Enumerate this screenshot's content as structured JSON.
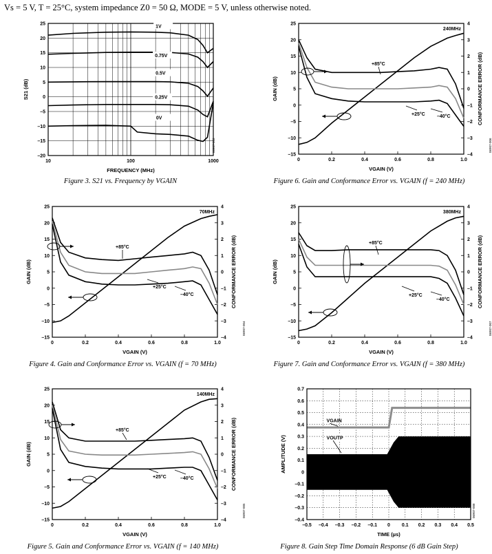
{
  "header": {
    "conditions": "Vs = 5 V, T = 25°C, system impedance Z0 = 50 Ω, MODE = 5 V, unless otherwise noted."
  },
  "chart_data": [
    {
      "id": "fig3",
      "type": "line",
      "caption": "Figure 3. S21 vs. Frequency by VGAIN",
      "code": "06907-003",
      "xlabel": "FREQUENCY (MHz)",
      "ylabel": "S21 (dB)",
      "xscale": "log",
      "xlim": [
        10,
        1000
      ],
      "ylim": [
        -20,
        25
      ],
      "xticks": [
        10,
        100,
        1000
      ],
      "yticks": [
        -20,
        -15,
        -10,
        -5,
        0,
        5,
        10,
        15,
        20,
        25
      ],
      "grid": true,
      "series": [
        {
          "name": "1V",
          "x": [
            10,
            20,
            50,
            100,
            200,
            300,
            500,
            650,
            750,
            850,
            1000
          ],
          "y": [
            21,
            21.6,
            22,
            22.1,
            22,
            21.8,
            21,
            19.5,
            17.5,
            15,
            16.5
          ]
        },
        {
          "name": "0.75V",
          "x": [
            10,
            20,
            50,
            100,
            200,
            300,
            500,
            650,
            750,
            850,
            1000
          ],
          "y": [
            14.5,
            14.8,
            15.1,
            15.2,
            15.2,
            15.1,
            14.6,
            13.5,
            12,
            10,
            12
          ]
        },
        {
          "name": "0.5V",
          "x": [
            10,
            20,
            50,
            100,
            200,
            300,
            500,
            650,
            750,
            850,
            1000
          ],
          "y": [
            5,
            5.1,
            5.2,
            5.2,
            5.2,
            5.1,
            4.6,
            3.5,
            2,
            0.2,
            3
          ]
        },
        {
          "name": "0.25V",
          "x": [
            10,
            20,
            50,
            100,
            200,
            300,
            500,
            650,
            750,
            850,
            1000
          ],
          "y": [
            -3,
            -2.8,
            -2.6,
            -2.6,
            -2.6,
            -2.7,
            -3.2,
            -4.5,
            -6,
            -6.8,
            -1.5
          ]
        },
        {
          "name": "0V",
          "x": [
            10,
            20,
            50,
            100,
            120,
            200,
            300,
            500,
            650,
            750,
            850,
            1000
          ],
          "y": [
            -10,
            -9.8,
            -9.7,
            -10,
            -12,
            -12.6,
            -12.8,
            -13.4,
            -14.8,
            -15.2,
            -13.8,
            -2
          ]
        }
      ]
    },
    {
      "id": "fig6",
      "type": "line",
      "caption": "Figure 6. Gain and Conformance Error vs. VGAIN (f = 240 MHz)",
      "code": "06907-006",
      "freq_label": "240MHz",
      "xlabel": "VGAIN (V)",
      "ylabel": "GAIN (dB)",
      "y2label": "CONFORMANCE ERROR (dB)",
      "xlim": [
        0,
        1
      ],
      "ylim": [
        -15,
        25
      ],
      "y2lim": [
        -4,
        4
      ],
      "xticks": [
        0,
        0.2,
        0.4,
        0.6,
        0.8,
        1.0
      ],
      "xtick_labels": [
        "0",
        "0.2",
        "0.4",
        "0.6",
        "0.8",
        "1.0"
      ],
      "yticks": [
        -15,
        -10,
        -5,
        0,
        5,
        10,
        15,
        20,
        25
      ],
      "y2ticks": [
        -4,
        -3,
        -2,
        -1,
        0,
        1,
        2,
        3,
        4
      ],
      "annotations": [
        "+85°C",
        "+25°C",
        "–40°C"
      ],
      "gain": {
        "x": [
          0,
          0.05,
          0.1,
          0.2,
          0.3,
          0.4,
          0.5,
          0.6,
          0.7,
          0.8,
          0.9,
          0.95,
          1.0
        ],
        "y": [
          -12,
          -11.4,
          -10,
          -5.5,
          -1.5,
          2.5,
          6.5,
          10.5,
          14.5,
          18,
          20.5,
          21.3,
          22
        ]
      },
      "error_series": [
        {
          "name": "+85°C",
          "x": [
            0,
            0.05,
            0.1,
            0.2,
            0.3,
            0.4,
            0.5,
            0.6,
            0.7,
            0.8,
            0.85,
            0.9,
            0.95,
            1.0
          ],
          "y": [
            3,
            1.9,
            1.2,
            1.0,
            1.0,
            1.0,
            1.0,
            1.05,
            1.1,
            1.2,
            1.3,
            1.2,
            0.3,
            -1.2
          ]
        },
        {
          "name": "+25°C",
          "x": [
            0,
            0.05,
            0.1,
            0.2,
            0.3,
            0.4,
            0.5,
            0.6,
            0.7,
            0.8,
            0.85,
            0.9,
            0.95,
            1.0
          ],
          "y": [
            2.8,
            1.3,
            0.4,
            0.1,
            0,
            0,
            0,
            0,
            0.05,
            0.1,
            0.2,
            0.1,
            -0.6,
            -1.8
          ]
        },
        {
          "name": "–40°C",
          "x": [
            0,
            0.05,
            0.1,
            0.2,
            0.3,
            0.4,
            0.5,
            0.6,
            0.7,
            0.8,
            0.85,
            0.9,
            0.95,
            1.0
          ],
          "y": [
            2.6,
            0.7,
            -0.3,
            -0.6,
            -0.75,
            -0.8,
            -0.8,
            -0.8,
            -0.8,
            -0.75,
            -0.7,
            -0.9,
            -1.6,
            -2.3
          ]
        }
      ]
    },
    {
      "id": "fig4",
      "type": "line",
      "caption": "Figure 4. Gain and Conformance Error vs. VGAIN (f = 70 MHz)",
      "code": "06907-004",
      "freq_label": "70MHz",
      "xlabel": "VGAIN (V)",
      "ylabel": "GAIN (dB)",
      "y2label": "CONFORMANCE ERROR (dB)",
      "xlim": [
        0,
        1
      ],
      "ylim": [
        -15,
        25
      ],
      "y2lim": [
        -4,
        4
      ],
      "xticks": [
        0,
        0.2,
        0.4,
        0.6,
        0.8,
        1.0
      ],
      "xtick_labels": [
        "0",
        "0.2",
        "0.4",
        "0.6",
        "0.8",
        "1.0"
      ],
      "yticks": [
        -15,
        -10,
        -5,
        0,
        5,
        10,
        15,
        20,
        25
      ],
      "y2ticks": [
        -4,
        -3,
        -2,
        -1,
        0,
        1,
        2,
        3,
        4
      ],
      "annotations": [
        "+85°C",
        "+25°C",
        "–40°C"
      ],
      "gain": {
        "x": [
          0,
          0.05,
          0.1,
          0.2,
          0.3,
          0.4,
          0.5,
          0.6,
          0.7,
          0.8,
          0.9,
          0.95,
          1.0
        ],
        "y": [
          -10.5,
          -10,
          -8.5,
          -4.5,
          -0.5,
          3.5,
          7.5,
          11.5,
          15.5,
          19,
          21.3,
          22,
          22.5
        ]
      },
      "error_series": [
        {
          "name": "+85°C",
          "x": [
            0,
            0.05,
            0.1,
            0.2,
            0.3,
            0.4,
            0.5,
            0.6,
            0.7,
            0.8,
            0.85,
            0.9,
            0.95,
            1.0
          ],
          "y": [
            3.3,
            1.8,
            1.2,
            0.85,
            0.75,
            0.7,
            0.8,
            0.9,
            1.0,
            1.1,
            1.2,
            1.0,
            0.1,
            -1.4
          ]
        },
        {
          "name": "+25°C",
          "x": [
            0,
            0.05,
            0.1,
            0.2,
            0.3,
            0.4,
            0.5,
            0.6,
            0.7,
            0.8,
            0.85,
            0.9,
            0.95,
            1.0
          ],
          "y": [
            3.1,
            1.2,
            0.4,
            0.0,
            -0.1,
            -0.1,
            -0.1,
            0,
            0.1,
            0.2,
            0.3,
            0.2,
            -0.7,
            -2.0
          ]
        },
        {
          "name": "–40°C",
          "x": [
            0,
            0.05,
            0.1,
            0.2,
            0.3,
            0.4,
            0.5,
            0.6,
            0.7,
            0.8,
            0.85,
            0.9,
            0.95,
            1.0
          ],
          "y": [
            2.9,
            0.6,
            -0.2,
            -0.6,
            -0.75,
            -0.8,
            -0.8,
            -0.75,
            -0.7,
            -0.6,
            -0.55,
            -0.8,
            -1.7,
            -2.6
          ]
        }
      ]
    },
    {
      "id": "fig7",
      "type": "line",
      "caption": "Figure 7. Gain and Conformance Error vs. VGAIN (f = 380 MHz)",
      "code": "06907-007",
      "freq_label": "380MHz",
      "xlabel": "VGAIN (V)",
      "ylabel": "GAIN (dB)",
      "y2label": "CONFORMANCE ERROR (dB)",
      "xlim": [
        0,
        1
      ],
      "ylim": [
        -15,
        25
      ],
      "y2lim": [
        -4,
        4
      ],
      "xticks": [
        0,
        0.2,
        0.4,
        0.6,
        0.8,
        1.0
      ],
      "xtick_labels": [
        "0",
        "0.2",
        "0.4",
        "0.6",
        "0.8",
        "1.0"
      ],
      "yticks": [
        -15,
        -10,
        -5,
        0,
        5,
        10,
        15,
        20,
        25
      ],
      "y2ticks": [
        -4,
        -3,
        -2,
        -1,
        0,
        1,
        2,
        3,
        4
      ],
      "annotations": [
        "+85°C",
        "+25°C",
        "–40°C"
      ],
      "gain": {
        "x": [
          0,
          0.05,
          0.1,
          0.2,
          0.3,
          0.4,
          0.5,
          0.6,
          0.7,
          0.8,
          0.9,
          0.95,
          1.0
        ],
        "y": [
          -13,
          -12.5,
          -11.5,
          -7.5,
          -3,
          1.5,
          5.5,
          9.5,
          13.5,
          17.5,
          20.5,
          21.5,
          22
        ]
      },
      "error_series": [
        {
          "name": "+85°C",
          "x": [
            0,
            0.05,
            0.1,
            0.2,
            0.3,
            0.4,
            0.5,
            0.6,
            0.7,
            0.8,
            0.85,
            0.9,
            0.95,
            1.0
          ],
          "y": [
            2.4,
            1.6,
            1.3,
            1.3,
            1.35,
            1.35,
            1.35,
            1.35,
            1.35,
            1.35,
            1.3,
            1.0,
            0.1,
            -1.4
          ]
        },
        {
          "name": "+25°C",
          "x": [
            0,
            0.05,
            0.1,
            0.2,
            0.3,
            0.4,
            0.5,
            0.6,
            0.7,
            0.8,
            0.85,
            0.9,
            0.95,
            1.0
          ],
          "y": [
            2.0,
            0.9,
            0.4,
            0.4,
            0.4,
            0.4,
            0.4,
            0.4,
            0.4,
            0.4,
            0.35,
            0.1,
            -0.8,
            -2.0
          ]
        },
        {
          "name": "–40°C",
          "x": [
            0,
            0.05,
            0.1,
            0.2,
            0.3,
            0.4,
            0.5,
            0.6,
            0.7,
            0.8,
            0.85,
            0.9,
            0.95,
            1.0
          ],
          "y": [
            1.7,
            0.3,
            -0.3,
            -0.3,
            -0.3,
            -0.3,
            -0.3,
            -0.3,
            -0.3,
            -0.3,
            -0.4,
            -0.7,
            -1.6,
            -2.7
          ]
        }
      ]
    },
    {
      "id": "fig5",
      "type": "line",
      "caption": "Figure 5. Gain and Conformance Error vs. VGAIN (f = 140 MHz)",
      "code": "06907-005",
      "freq_label": "140MHz",
      "xlabel": "VGAIN (V)",
      "ylabel": "GAIN (dB)",
      "y2label": "CONFORMANCE ERROR (dB)",
      "xlim": [
        0,
        1
      ],
      "ylim": [
        -15,
        25
      ],
      "y2lim": [
        -4,
        4
      ],
      "xticks": [
        0,
        0.2,
        0.4,
        0.6,
        0.8,
        1.0
      ],
      "xtick_labels": [
        "0",
        "0.2",
        "0.4",
        "0.6",
        "0.8",
        "1.0"
      ],
      "yticks": [
        -15,
        -10,
        -5,
        0,
        5,
        10,
        15,
        20,
        25
      ],
      "y2ticks": [
        -4,
        -3,
        -2,
        -1,
        0,
        1,
        2,
        3,
        4
      ],
      "annotations": [
        "+85°C",
        "+25°C",
        "–40°C"
      ],
      "gain": {
        "x": [
          0,
          0.05,
          0.1,
          0.2,
          0.3,
          0.4,
          0.5,
          0.6,
          0.7,
          0.8,
          0.9,
          0.95,
          1.0
        ],
        "y": [
          -11.5,
          -11,
          -9.5,
          -5.5,
          -1.5,
          2.5,
          6.5,
          10.5,
          14.5,
          18.5,
          21,
          21.8,
          22
        ]
      },
      "error_series": [
        {
          "name": "+85°C",
          "x": [
            0,
            0.05,
            0.1,
            0.2,
            0.3,
            0.4,
            0.5,
            0.6,
            0.7,
            0.8,
            0.85,
            0.9,
            0.95,
            1.0
          ],
          "y": [
            3.2,
            1.5,
            1.0,
            0.8,
            0.8,
            0.8,
            0.8,
            0.85,
            0.9,
            0.95,
            1.0,
            0.8,
            -0.2,
            -1.6
          ]
        },
        {
          "name": "+25°C",
          "x": [
            0,
            0.05,
            0.1,
            0.2,
            0.3,
            0.4,
            0.5,
            0.6,
            0.7,
            0.8,
            0.85,
            0.9,
            0.95,
            1.0
          ],
          "y": [
            3.0,
            0.9,
            0.2,
            0.0,
            -0.05,
            -0.05,
            -0.05,
            0,
            0.05,
            0.1,
            0.15,
            0,
            -0.9,
            -2.1
          ]
        },
        {
          "name": "–40°C",
          "x": [
            0,
            0.05,
            0.1,
            0.2,
            0.3,
            0.4,
            0.5,
            0.6,
            0.7,
            0.8,
            0.85,
            0.9,
            0.95,
            1.0
          ],
          "y": [
            2.8,
            0.3,
            -0.5,
            -0.75,
            -0.85,
            -0.9,
            -0.9,
            -0.9,
            -0.85,
            -0.8,
            -0.8,
            -1.0,
            -1.9,
            -2.8
          ]
        }
      ]
    },
    {
      "id": "fig8",
      "type": "line",
      "caption": "Figure 8. Gain Step Time Domain Response (6 dB Gain Step)",
      "code": "06907-008",
      "xlabel": "TIME (µs)",
      "ylabel": "AMPLITUDE (V)",
      "xlim": [
        -0.5,
        0.5
      ],
      "ylim": [
        -0.4,
        0.7
      ],
      "xticks": [
        -0.5,
        -0.4,
        -0.3,
        -0.2,
        -0.1,
        0,
        0.1,
        0.2,
        0.3,
        0.4,
        0.5
      ],
      "xtick_labels": [
        "–0.5",
        "–0.4",
        "–0.3",
        "–0.2",
        "–0.1",
        "0",
        "0.1",
        "0.2",
        "0.3",
        "0.4",
        "0.5"
      ],
      "yticks": [
        -0.4,
        -0.3,
        -0.2,
        -0.1,
        0,
        0.1,
        0.2,
        0.3,
        0.4,
        0.5,
        0.6,
        0.7
      ],
      "ytick_labels": [
        "–0.4",
        "–0.3",
        "–0.2",
        "–0.1",
        "0",
        "0.1",
        "0.2",
        "0.3",
        "0.4",
        "0.5",
        "0.6",
        "0.7"
      ],
      "grid": true,
      "series": [
        {
          "name": "VGAIN",
          "x": [
            -0.5,
            0,
            0.02,
            0.5
          ],
          "y": [
            0.375,
            0.375,
            0.54,
            0.54
          ],
          "color": "#8c8c8c"
        },
        {
          "name": "VOUTP",
          "envelope_x": [
            -0.5,
            -0.01,
            0.03,
            0.06,
            0.5
          ],
          "upper": [
            0.15,
            0.15,
            0.25,
            0.3,
            0.3
          ],
          "lower": [
            -0.15,
            -0.15,
            -0.25,
            -0.3,
            -0.3
          ],
          "color": "#000000"
        }
      ]
    }
  ]
}
